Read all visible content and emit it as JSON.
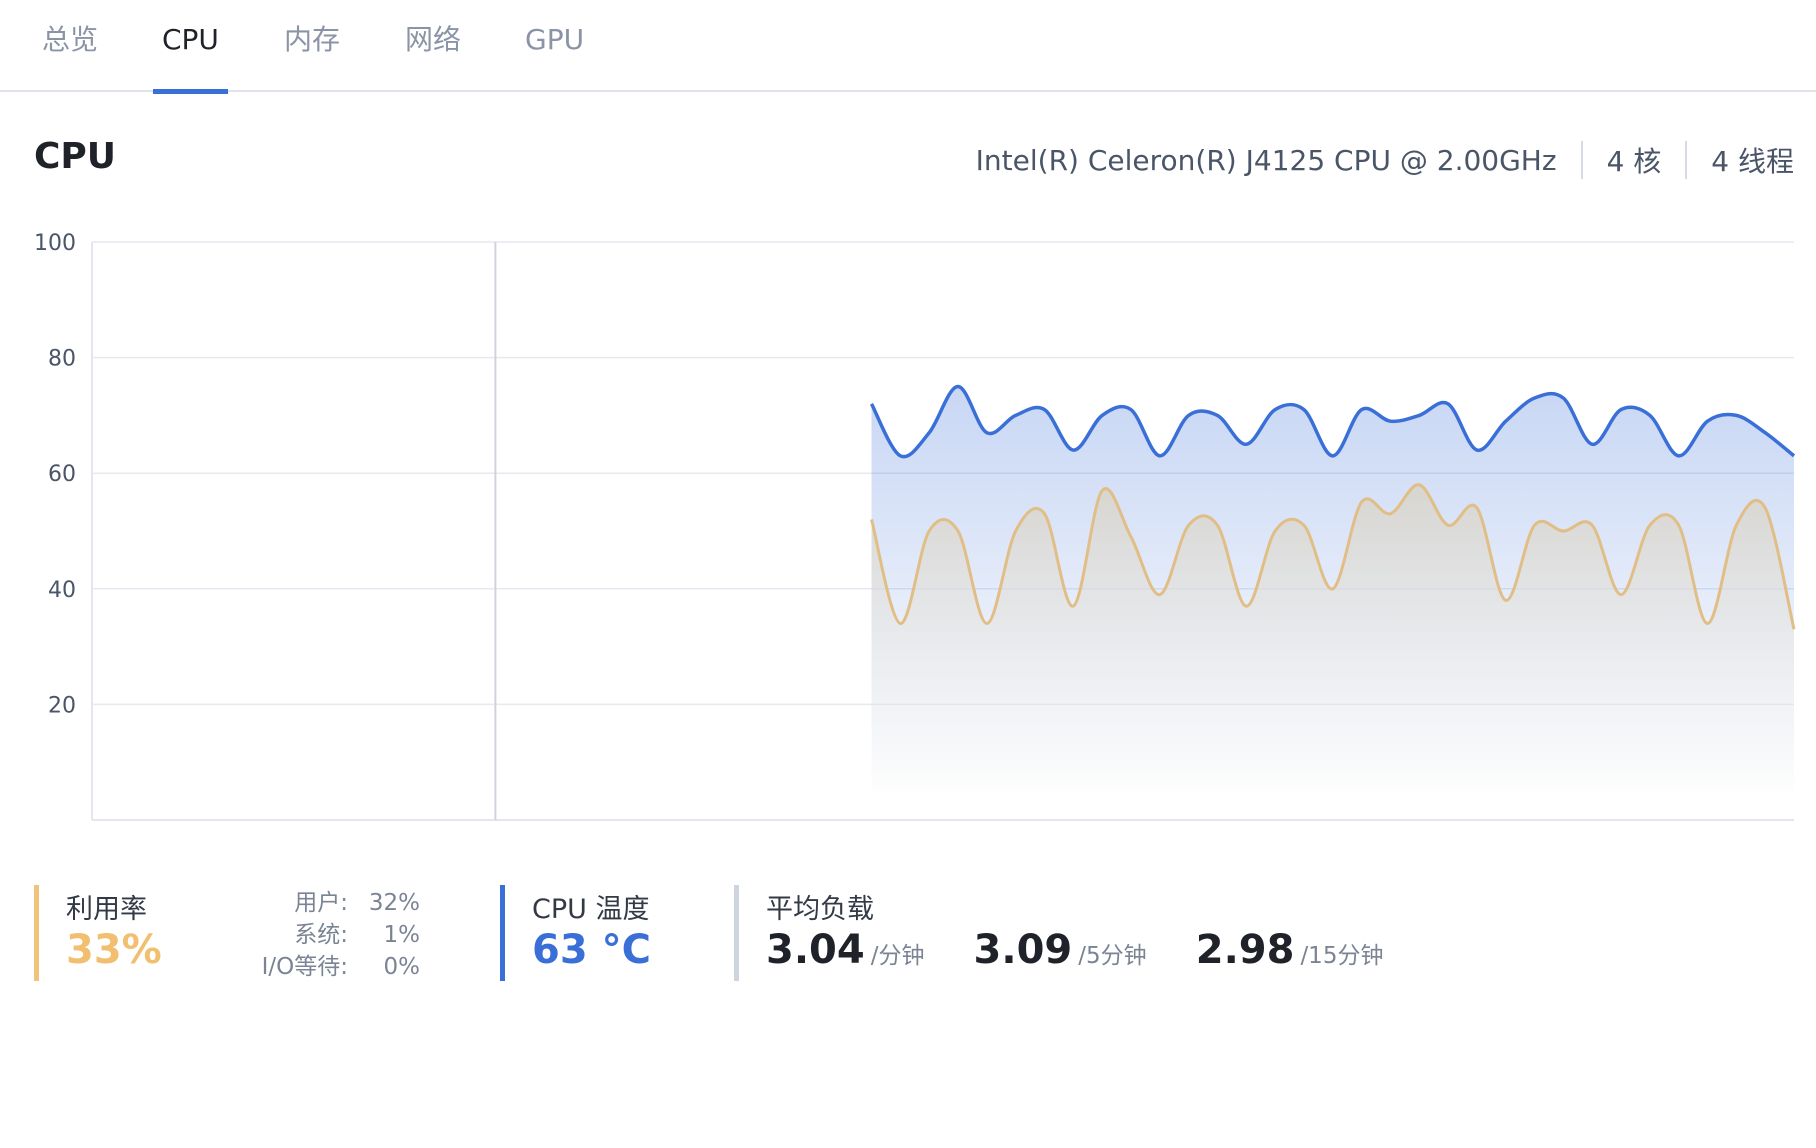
{
  "tabs": [
    {
      "label": "总览",
      "active": false
    },
    {
      "label": "CPU",
      "active": true
    },
    {
      "label": "内存",
      "active": false
    },
    {
      "label": "网络",
      "active": false
    },
    {
      "label": "GPU",
      "active": false
    }
  ],
  "section": {
    "title": "CPU",
    "model": "Intel(R) Celeron(R) J4125 CPU @ 2.00GHz",
    "cores": "4 核",
    "threads": "4 线程"
  },
  "chart_data": {
    "type": "area",
    "ylim": [
      0,
      100
    ],
    "y_ticks": [
      20,
      40,
      60,
      80,
      100
    ],
    "grid": true,
    "colors": {
      "series_1": "#3a6fd8",
      "series_2": "#e0be86"
    },
    "series": [
      {
        "values": [
          72,
          63,
          67,
          75,
          67,
          70,
          71,
          64,
          70,
          71,
          63,
          70,
          70,
          65,
          71,
          71,
          63,
          71,
          69,
          70,
          72,
          64,
          69,
          73,
          73,
          65,
          71,
          70,
          63,
          69,
          70,
          67,
          63
        ]
      },
      {
        "values": [
          52,
          34,
          50,
          50,
          34,
          50,
          53,
          37,
          57,
          49,
          39,
          51,
          51,
          37,
          50,
          51,
          40,
          55,
          53,
          58,
          51,
          54,
          38,
          51,
          50,
          51,
          39,
          51,
          51,
          34,
          51,
          54,
          33
        ]
      }
    ],
    "x_start_fraction": 0.458,
    "cursor_fraction": 0.237
  },
  "stats": {
    "utilization": {
      "label": "利用率",
      "value": "33%",
      "breakdown": [
        {
          "key": "用户:",
          "value": "32%"
        },
        {
          "key": "系统:",
          "value": "1%"
        },
        {
          "key": "I/O等待:",
          "value": "0%"
        }
      ]
    },
    "temperature": {
      "label": "CPU 温度",
      "value": "63 °C"
    },
    "load": {
      "label": "平均负载",
      "items": [
        {
          "value": "3.04",
          "unit": "/分钟"
        },
        {
          "value": "3.09",
          "unit": "/5分钟"
        },
        {
          "value": "2.98",
          "unit": "/15分钟"
        }
      ]
    }
  }
}
